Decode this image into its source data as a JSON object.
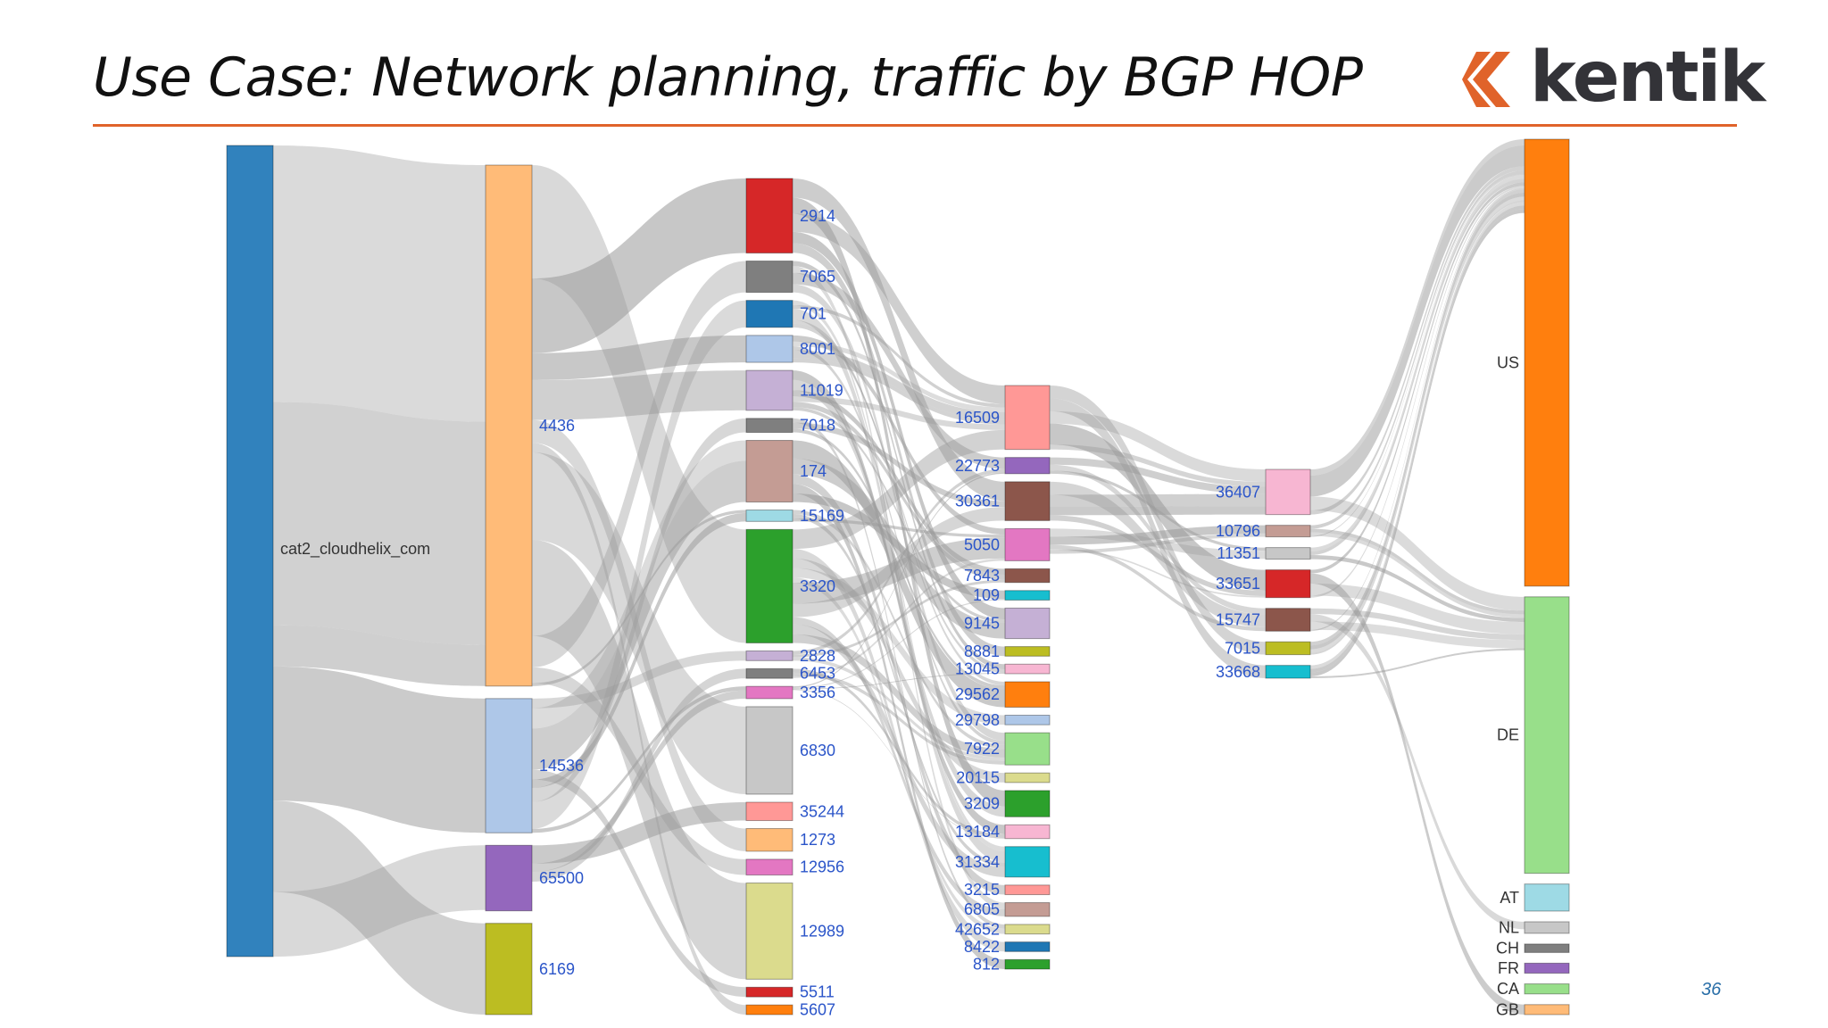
{
  "slide": {
    "title": "Use Case: Network planning, traffic by BGP HOP",
    "page_number": "36",
    "accent_color": "#e0632a"
  },
  "logo": {
    "text": "kentik",
    "mark_color": "#e0632a",
    "text_color": "#333338"
  },
  "sankey": {
    "link_color": "#9a9a9a",
    "source": {
      "name": "cat2_cloudhelix_com",
      "color": "#3182bd"
    },
    "columns": [
      {
        "stage": "source",
        "nodes": [
          {
            "id": "cat2_cloudhelix_com",
            "color": "#3182bd",
            "weight": 100
          }
        ]
      },
      {
        "stage": "hop-1",
        "nodes": [
          {
            "id": "4436",
            "color": "#ffbb78",
            "weight": 60
          },
          {
            "id": "14536",
            "color": "#aec7e8",
            "weight": 15
          },
          {
            "id": "65500",
            "color": "#9467bd",
            "weight": 7
          },
          {
            "id": "6169",
            "color": "#bcbd22",
            "weight": 10
          }
        ]
      },
      {
        "stage": "hop-2",
        "nodes": [
          {
            "id": "2914",
            "color": "#d62728",
            "weight": 8
          },
          {
            "id": "7065",
            "color": "#7f7f7f",
            "weight": 3
          },
          {
            "id": "701",
            "color": "#1f77b4",
            "weight": 2.5
          },
          {
            "id": "8001",
            "color": "#aec7e8",
            "weight": 2.5
          },
          {
            "id": "11019",
            "color": "#c5b0d5",
            "weight": 4
          },
          {
            "id": "7018",
            "color": "#7f7f7f",
            "weight": 1
          },
          {
            "id": "174",
            "color": "#c49c94",
            "weight": 6.5
          },
          {
            "id": "15169",
            "color": "#9edae5",
            "weight": 0.7
          },
          {
            "id": "3320",
            "color": "#2ca02c",
            "weight": 12.5
          },
          {
            "id": "2828",
            "color": "#c5b0d5",
            "weight": 0.5
          },
          {
            "id": "6453",
            "color": "#7f7f7f",
            "weight": 0.5
          },
          {
            "id": "3356",
            "color": "#e377c2",
            "weight": 0.8
          },
          {
            "id": "6830",
            "color": "#c7c7c7",
            "weight": 9.5
          },
          {
            "id": "35244",
            "color": "#ff9896",
            "weight": 1.5
          },
          {
            "id": "1273",
            "color": "#ffbb78",
            "weight": 2
          },
          {
            "id": "12956",
            "color": "#e377c2",
            "weight": 1.2
          },
          {
            "id": "12989",
            "color": "#dbdb8d",
            "weight": 10.5
          },
          {
            "id": "5511",
            "color": "#d62728",
            "weight": 0.5
          },
          {
            "id": "5607",
            "color": "#ff7f0e",
            "weight": 0.5
          }
        ]
      },
      {
        "stage": "hop-3",
        "nodes": [
          {
            "id": "16509",
            "color": "#ff9896",
            "weight": 7
          },
          {
            "id": "22773",
            "color": "#9467bd",
            "weight": 1.3
          },
          {
            "id": "30361",
            "color": "#8c564b",
            "weight": 4
          },
          {
            "id": "5050",
            "color": "#e377c2",
            "weight": 3.2
          },
          {
            "id": "7843",
            "color": "#8c564b",
            "weight": 1
          },
          {
            "id": "109",
            "color": "#17becf",
            "weight": 0.5
          },
          {
            "id": "9145",
            "color": "#c5b0d5",
            "weight": 3
          },
          {
            "id": "8881",
            "color": "#bcbd22",
            "weight": 0.5
          },
          {
            "id": "13045",
            "color": "#f7b6d2",
            "weight": 0.5
          },
          {
            "id": "29562",
            "color": "#ff7f0e",
            "weight": 2.4
          },
          {
            "id": "29798",
            "color": "#aec7e8",
            "weight": 0.5
          },
          {
            "id": "7922",
            "color": "#98df8a",
            "weight": 3.2
          },
          {
            "id": "20115",
            "color": "#dbdb8d",
            "weight": 0.5
          },
          {
            "id": "3209",
            "color": "#2ca02c",
            "weight": 2.5
          },
          {
            "id": "13184",
            "color": "#f7b6d2",
            "weight": 1
          },
          {
            "id": "31334",
            "color": "#17becf",
            "weight": 3
          },
          {
            "id": "3215",
            "color": "#ff9896",
            "weight": 0.5
          },
          {
            "id": "6805",
            "color": "#c49c94",
            "weight": 1
          },
          {
            "id": "42652",
            "color": "#dbdb8d",
            "weight": 0.5
          },
          {
            "id": "8422",
            "color": "#1f77b4",
            "weight": 0.5
          },
          {
            "id": "812",
            "color": "#2ca02c",
            "weight": 0.5
          }
        ]
      },
      {
        "stage": "hop-4",
        "nodes": [
          {
            "id": "36407",
            "color": "#f7b6d2",
            "weight": 3.2
          },
          {
            "id": "10796",
            "color": "#c49c94",
            "weight": 0.5
          },
          {
            "id": "11351",
            "color": "#c7c7c7",
            "weight": 0.5
          },
          {
            "id": "33651",
            "color": "#d62728",
            "weight": 1.8
          },
          {
            "id": "15747",
            "color": "#8c564b",
            "weight": 1.4
          },
          {
            "id": "7015",
            "color": "#bcbd22",
            "weight": 0.6
          },
          {
            "id": "33668",
            "color": "#17becf",
            "weight": 0.6
          }
        ]
      },
      {
        "stage": "country",
        "nodes": [
          {
            "id": "US",
            "color": "#ff7f0e",
            "weight": 57
          },
          {
            "id": "DE",
            "color": "#98df8a",
            "weight": 35
          },
          {
            "id": "AT",
            "color": "#9edae5",
            "weight": 2.8
          },
          {
            "id": "NL",
            "color": "#c7c7c7",
            "weight": 0.8
          },
          {
            "id": "CH",
            "color": "#7f7f7f",
            "weight": 0.4
          },
          {
            "id": "FR",
            "color": "#9467bd",
            "weight": 0.6
          },
          {
            "id": "CA",
            "color": "#98df8a",
            "weight": 0.6
          },
          {
            "id": "GB",
            "color": "#ffbb78",
            "weight": 0.6
          }
        ]
      }
    ]
  }
}
